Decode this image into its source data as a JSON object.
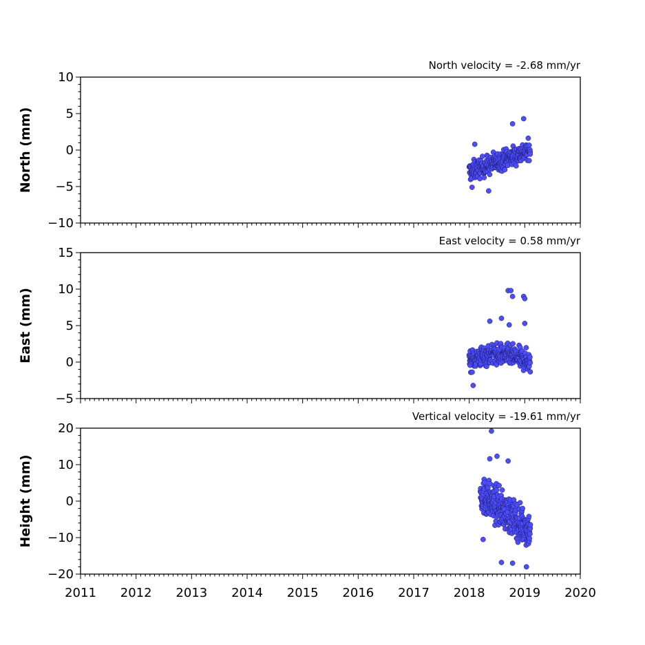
{
  "chart_data": [
    {
      "type": "scatter",
      "title": "North velocity = -2.68 mm/yr",
      "xlabel": "",
      "ylabel": "North (mm)",
      "xlim": [
        2011,
        2020
      ],
      "ylim": [
        -10,
        10
      ],
      "yticks": [
        "10",
        "5",
        "0",
        "−5",
        "−10"
      ],
      "marker_color": "#4d4dff",
      "grid": false,
      "data_summary": {
        "x_range": [
          2018.0,
          2019.1
        ],
        "trend": "rising",
        "y_start_mean": -3.0,
        "y_end_mean": 0.0,
        "noise": 1.2
      },
      "outliers": [
        {
          "x": 2018.98,
          "y": 4.3
        },
        {
          "x": 2018.78,
          "y": 3.6
        },
        {
          "x": 2018.1,
          "y": 0.8
        },
        {
          "x": 2018.35,
          "y": -5.6
        },
        {
          "x": 2018.05,
          "y": -5.1
        }
      ]
    },
    {
      "type": "scatter",
      "title": "East velocity = 0.58 mm/yr",
      "xlabel": "",
      "ylabel": "East (mm)",
      "xlim": [
        2011,
        2020
      ],
      "ylim": [
        -5,
        15
      ],
      "yticks": [
        "15",
        "10",
        "5",
        "0",
        "−5"
      ],
      "marker_color": "#4d4dff",
      "grid": false,
      "data_summary": {
        "x_range": [
          2018.0,
          2019.1
        ],
        "trend": "flat",
        "y_start_mean": 0.3,
        "y_end_mean": 0.0,
        "noise": 1.3
      },
      "outliers": [
        {
          "x": 2018.7,
          "y": 9.8
        },
        {
          "x": 2018.75,
          "y": 9.8
        },
        {
          "x": 2018.78,
          "y": 9.0
        },
        {
          "x": 2018.98,
          "y": 9.0
        },
        {
          "x": 2019.0,
          "y": 8.7
        },
        {
          "x": 2018.58,
          "y": 6.0
        },
        {
          "x": 2018.37,
          "y": 5.6
        },
        {
          "x": 2019.0,
          "y": 5.3
        },
        {
          "x": 2018.72,
          "y": 5.1
        },
        {
          "x": 2018.07,
          "y": -3.2
        }
      ]
    },
    {
      "type": "scatter",
      "title": "Vertical velocity = -19.61 mm/yr",
      "xlabel": "",
      "ylabel": "Height (mm)",
      "xlim": [
        2011,
        2020
      ],
      "ylim": [
        -20,
        20
      ],
      "yticks": [
        "20",
        "10",
        "0",
        "−10",
        "−20"
      ],
      "xticks": [
        "2011",
        "2012",
        "2013",
        "2014",
        "2015",
        "2016",
        "2017",
        "2018",
        "2019",
        "2020"
      ],
      "marker_color": "#4d4dff",
      "grid": false,
      "data_summary": {
        "x_range": [
          2018.2,
          2019.1
        ],
        "trend": "falling",
        "y_start_mean": 2.0,
        "y_end_mean": -8.0,
        "noise": 4.5
      },
      "outliers": [
        {
          "x": 2018.4,
          "y": 19.2
        },
        {
          "x": 2018.5,
          "y": 12.3
        },
        {
          "x": 2018.37,
          "y": 11.6
        },
        {
          "x": 2018.7,
          "y": 11.0
        },
        {
          "x": 2019.03,
          "y": -18.0
        },
        {
          "x": 2018.58,
          "y": -16.8
        },
        {
          "x": 2018.78,
          "y": -17.0
        },
        {
          "x": 2018.25,
          "y": -10.5
        }
      ]
    }
  ]
}
